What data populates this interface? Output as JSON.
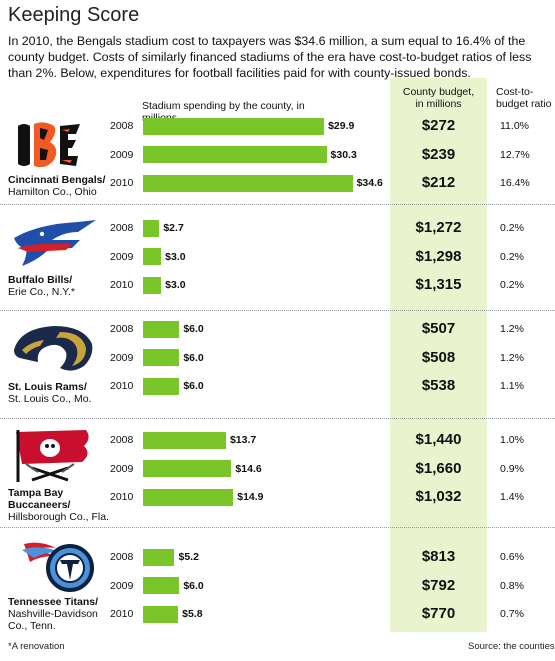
{
  "title": "Keeping Score",
  "intro": "In 2010, the Bengals stadium cost to taxpayers was $34.6 million, a sum equal to 16.4% of the county budget. Costs of similarly financed stadiums of the era have cost-to-budget ratios of less than 2%. Below, expenditures for football facilities paid for with county-issued bonds.",
  "headers": {
    "spending": "Stadium spending by the county, in millions",
    "budget_line1": "County budget,",
    "budget_line2": "in millions",
    "ratio_line1": "Cost-to-",
    "ratio_line2": "budget ratio"
  },
  "footnote": "*A renovation",
  "source": "Source: the counties",
  "colors": {
    "bar": "#79c52a",
    "budget_column": "#e9f4cf",
    "bengals_orange": "#f15a22",
    "bills_blue": "#1f4fa8",
    "bills_red": "#d31f2b",
    "rams_navy": "#1b2a4a",
    "rams_gold": "#c9a23a",
    "bucs_red": "#c8102e",
    "titans_navy": "#0c2340",
    "titans_blue": "#4b92db"
  },
  "chart_data": {
    "type": "bar",
    "orientation": "horizontal",
    "title": "Keeping Score",
    "xlabel": "Stadium spending by the county, in millions",
    "xlim": [
      0,
      35
    ],
    "years": [
      "2008",
      "2009",
      "2010"
    ],
    "teams": [
      {
        "name": "Cincinnati Bengals/",
        "county": "Hamilton Co., Ohio",
        "logo": "bengals-logo",
        "spending": [
          29.9,
          30.3,
          34.6
        ],
        "spending_labels": [
          "$29.9",
          "$30.3",
          "$34.6"
        ],
        "budget": [
          "$272",
          "$239",
          "$212"
        ],
        "ratio": [
          "11.0%",
          "12.7%",
          "16.4%"
        ]
      },
      {
        "name": "Buffalo Bills/",
        "county": "Erie Co., N.Y.*",
        "logo": "bills-logo",
        "spending": [
          2.7,
          3.0,
          3.0
        ],
        "spending_labels": [
          "$2.7",
          "$3.0",
          "$3.0"
        ],
        "budget": [
          "$1,272",
          "$1,298",
          "$1,315"
        ],
        "ratio": [
          "0.2%",
          "0.2%",
          "0.2%"
        ]
      },
      {
        "name": "St. Louis Rams/",
        "county": "St. Louis Co., Mo.",
        "logo": "rams-logo",
        "spending": [
          6.0,
          6.0,
          6.0
        ],
        "spending_labels": [
          "$6.0",
          "$6.0",
          "$6.0"
        ],
        "budget": [
          "$507",
          "$508",
          "$538"
        ],
        "ratio": [
          "1.2%",
          "1.2%",
          "1.1%"
        ]
      },
      {
        "name": "Tampa Bay Buccaneers/",
        "county": "Hillsborough Co., Fla.",
        "logo": "buccaneers-logo",
        "spending": [
          13.7,
          14.6,
          14.9
        ],
        "spending_labels": [
          "$13.7",
          "$14.6",
          "$14.9"
        ],
        "budget": [
          "$1,440",
          "$1,660",
          "$1,032"
        ],
        "ratio": [
          "1.0%",
          "0.9%",
          "1.4%"
        ]
      },
      {
        "name": "Tennessee Titans/",
        "county": "Nashville-Davidson Co., Tenn.",
        "logo": "titans-logo",
        "spending": [
          5.2,
          6.0,
          5.8
        ],
        "spending_labels": [
          "$5.2",
          "$6.0",
          "$5.8"
        ],
        "budget": [
          "$813",
          "$792",
          "$770"
        ],
        "ratio": [
          "0.6%",
          "0.8%",
          "0.7%"
        ]
      }
    ]
  }
}
